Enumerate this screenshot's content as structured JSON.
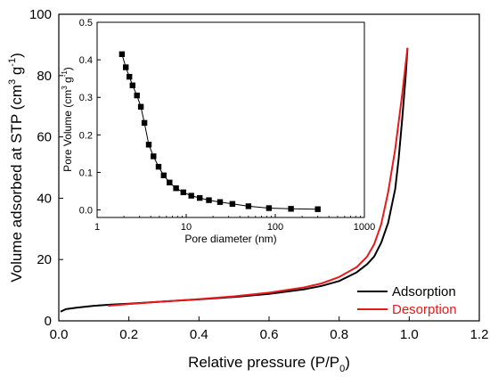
{
  "chart_data": [
    {
      "type": "line",
      "xlabel": "Relative pressure (P/P",
      "xlabel_sub": "0",
      "xlabel_close": ")",
      "ylabel": "Volume adsorbed at STP (cm",
      "ylabel_sup1": "3",
      "ylabel_mid": " g",
      "ylabel_sup2": "-1",
      "ylabel_close": ")",
      "xlim": [
        0.0,
        1.2
      ],
      "ylim": [
        0,
        100
      ],
      "xticks": [
        "0.0",
        "0.2",
        "0.4",
        "0.6",
        "0.8",
        "1.0",
        "1.2"
      ],
      "yticks": [
        "0",
        "20",
        "40",
        "60",
        "80",
        "100"
      ],
      "legend_position": "bottom-right",
      "series": [
        {
          "name": "Adsorption",
          "color": "#000000",
          "x": [
            0.005,
            0.02,
            0.05,
            0.1,
            0.15,
            0.2,
            0.3,
            0.4,
            0.5,
            0.6,
            0.7,
            0.75,
            0.8,
            0.85,
            0.88,
            0.9,
            0.92,
            0.94,
            0.96,
            0.97,
            0.98,
            0.99,
            0.995
          ],
          "y": [
            3.0,
            3.8,
            4.3,
            4.9,
            5.3,
            5.6,
            6.3,
            7.0,
            7.8,
            8.8,
            10.3,
            11.4,
            13.0,
            15.8,
            18.5,
            21.0,
            25.5,
            32.0,
            43.0,
            53.0,
            66.0,
            80.0,
            89.0
          ]
        },
        {
          "name": "Desorption",
          "color": "#e8191c",
          "x": [
            0.14,
            0.2,
            0.3,
            0.4,
            0.5,
            0.6,
            0.7,
            0.75,
            0.8,
            0.85,
            0.88,
            0.9,
            0.92,
            0.94,
            0.96,
            0.98,
            0.995
          ],
          "y": [
            4.9,
            5.5,
            6.3,
            7.1,
            8.0,
            9.2,
            10.9,
            12.2,
            14.3,
            17.5,
            21.0,
            25.0,
            31.5,
            42.0,
            56.0,
            74.0,
            89.0
          ]
        }
      ]
    },
    {
      "type": "line",
      "inset": true,
      "xlabel": "Pore diameter (nm)",
      "ylabel": "Pore Volume (cm",
      "ylabel_sup1": "3",
      "ylabel_mid": " g",
      "ylabel_sup2": "-1",
      "ylabel_close": ")",
      "x_scale": "log",
      "xlim": [
        1,
        1000
      ],
      "ylim": [
        -0.02,
        0.5
      ],
      "xticks": [
        "1",
        "10",
        "100",
        "1000"
      ],
      "yticks": [
        "0.0",
        "0.1",
        "0.2",
        "0.3",
        "0.4",
        "0.5"
      ],
      "series": [
        {
          "marker": "square",
          "color": "#000000",
          "x": [
            1.9,
            2.1,
            2.3,
            2.5,
            2.8,
            3.1,
            3.4,
            3.8,
            4.3,
            4.9,
            5.6,
            6.5,
            7.7,
            9.3,
            11.4,
            14.2,
            18.0,
            24.0,
            33.0,
            50.0,
            85.0,
            150.0,
            300.0
          ],
          "y": [
            0.415,
            0.38,
            0.355,
            0.332,
            0.305,
            0.275,
            0.232,
            0.174,
            0.143,
            0.115,
            0.092,
            0.073,
            0.058,
            0.047,
            0.038,
            0.032,
            0.026,
            0.021,
            0.016,
            0.01,
            0.005,
            0.003,
            0.002
          ]
        }
      ]
    }
  ]
}
